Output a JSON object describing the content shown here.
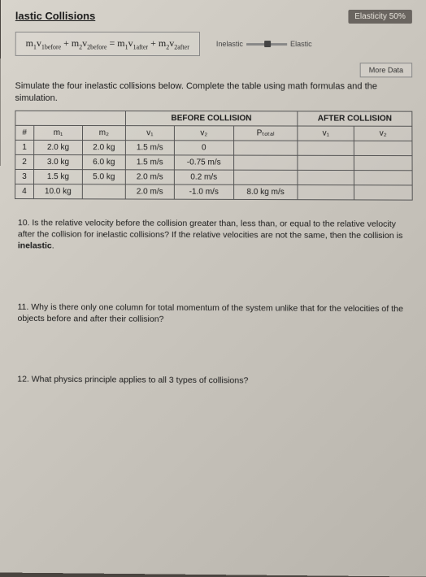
{
  "title": "lastic Collisions",
  "elasticity_label": "Elasticity 50%",
  "formula_html": "m<sub>1</sub>v<sub>1before</sub> + m<sub>2</sub>v<sub>2before</sub> = m<sub>1</sub>v<sub>1after</sub> + m<sub>2</sub>v<sub>2after</sub>",
  "slider_left": "Inelastic",
  "slider_right": "Elastic",
  "more_data": "More Data",
  "instruction": "Simulate the four inelastic collisions below. Complete the table using math formulas and the simulation.",
  "table": {
    "group_before": "BEFORE COLLISION",
    "group_after": "AFTER COLLISION",
    "headers": [
      "#",
      "m₁",
      "m₂",
      "v₁",
      "v₂",
      "Pₜₒₜₐₗ",
      "v₁",
      "v₂"
    ],
    "rows": [
      [
        "1",
        "2.0 kg",
        "2.0 kg",
        "1.5 m/s",
        "0",
        "",
        "",
        ""
      ],
      [
        "2",
        "3.0 kg",
        "6.0 kg",
        "1.5 m/s",
        "-0.75 m/s",
        "",
        "",
        ""
      ],
      [
        "3",
        "1.5 kg",
        "5.0 kg",
        "2.0 m/s",
        "0.2 m/s",
        "",
        "",
        ""
      ],
      [
        "4",
        "10.0 kg",
        "",
        "2.0 m/s",
        "-1.0 m/s",
        "8.0 kg m/s",
        "",
        ""
      ]
    ]
  },
  "q10_prefix": "10. Is the relative velocity before the collision greater than, less than, or equal to the relative velocity after the collision for inelastic collisions? If the relative velocities are not the same, then the collision is ",
  "q10_bold": "inelastic",
  "q10_suffix": ".",
  "q11": "11. Why is there only one column for total momentum of the system unlike that for the velocities of the objects before and after their collision?",
  "q12": "12. What physics principle applies to all 3 types of collisions?"
}
